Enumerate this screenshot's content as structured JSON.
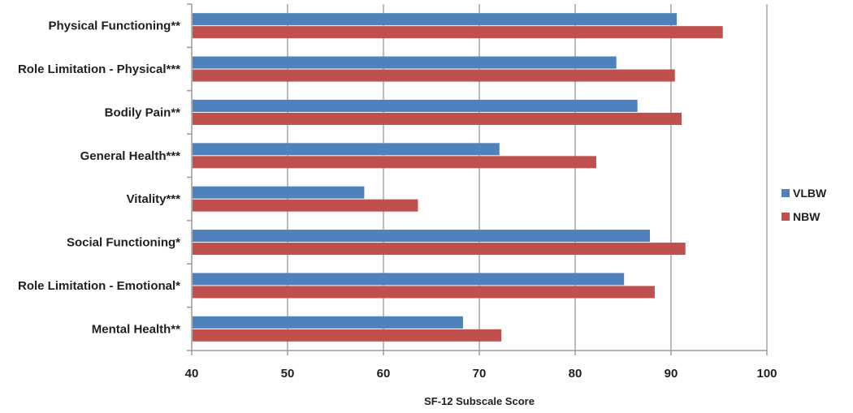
{
  "chart_data": {
    "type": "bar",
    "orientation": "horizontal",
    "categories": [
      "Physical Functioning**",
      "Role Limitation - Physical***",
      "Bodily Pain**",
      "General Health***",
      "Vitality***",
      "Social Functioning*",
      "Role Limitation - Emotional*",
      "Mental Health**"
    ],
    "series": [
      {
        "name": "VLBW",
        "color": "#4f81bd",
        "values": [
          90.6,
          84.3,
          86.5,
          72.1,
          58.0,
          87.8,
          85.1,
          68.3
        ]
      },
      {
        "name": "NBW",
        "color": "#c0504d",
        "values": [
          95.4,
          90.4,
          91.1,
          82.2,
          63.6,
          91.5,
          88.3,
          72.3
        ]
      }
    ],
    "xlabel": "SF-12 Subscale Score",
    "ylabel": "",
    "xlim": [
      40,
      100
    ],
    "ticks": [
      "40",
      "50",
      "60",
      "70",
      "80",
      "90",
      "100"
    ],
    "grid": true,
    "legend_position": "right"
  }
}
